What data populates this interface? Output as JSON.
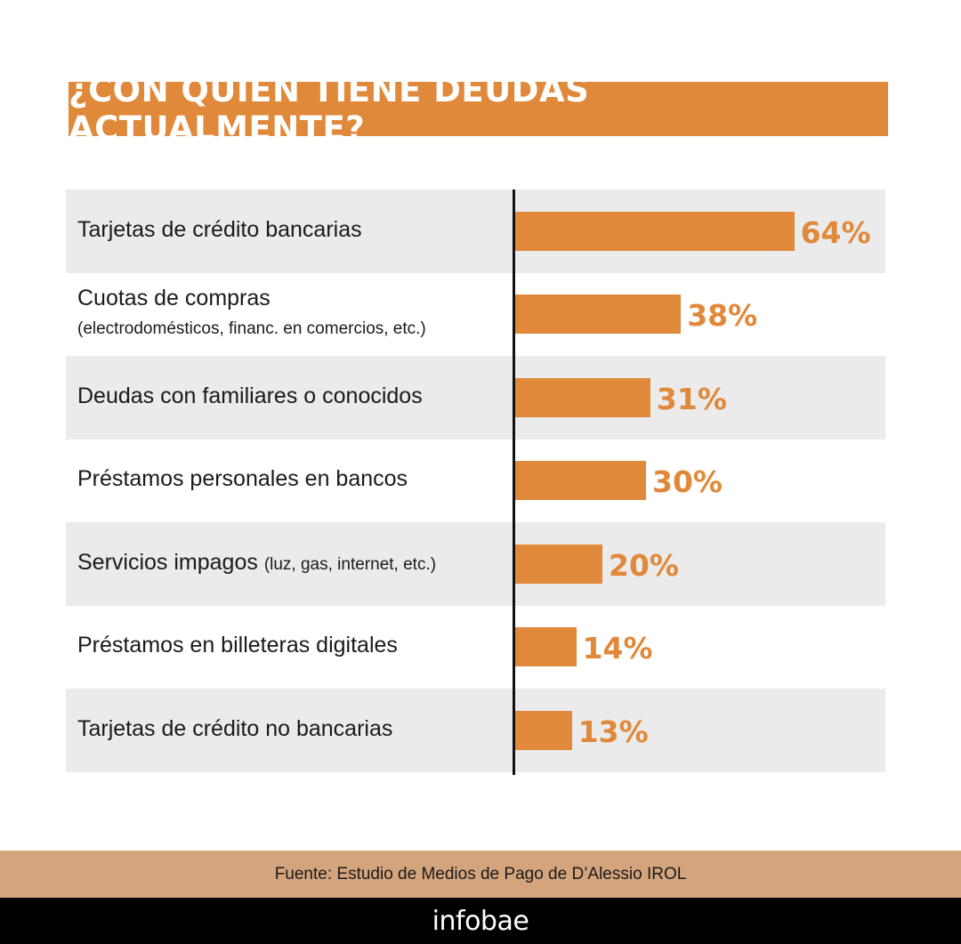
{
  "chart_data": {
    "type": "bar",
    "orientation": "horizontal",
    "title": "¿CON QUIÉN TIENE DEUDAS ACTUALMENTE?",
    "categories": [
      {
        "label": "Tarjetas de crédito bancarias",
        "sublabel": ""
      },
      {
        "label": "Cuotas de compras",
        "sublabel": "(electrodomésticos, financ. en comercios, etc.)"
      },
      {
        "label": "Deudas con familiares o conocidos",
        "sublabel": ""
      },
      {
        "label": "Préstamos personales en bancos",
        "sublabel": ""
      },
      {
        "label": "Servicios impagos",
        "sublabel": "(luz, gas, internet, etc.)"
      },
      {
        "label": "Préstamos en billeteras digitales",
        "sublabel": ""
      },
      {
        "label": "Tarjetas de crédito no bancarias",
        "sublabel": ""
      }
    ],
    "values": [
      64,
      38,
      31,
      30,
      20,
      14,
      13
    ],
    "value_labels": [
      "64%",
      "38%",
      "31%",
      "30%",
      "20%",
      "14%",
      "13%"
    ],
    "unit": "%",
    "colors": {
      "bar": "#e0893a",
      "row_background": "#ebebeb",
      "axis": "#111111"
    }
  },
  "source": "Fuente: Estudio de Medios de Pago de D’Alessio IROL",
  "brand": "infobae",
  "colors": {
    "title_bg": "#e0893a",
    "source_bg": "#d4a57c",
    "footer_bg": "#000000"
  }
}
